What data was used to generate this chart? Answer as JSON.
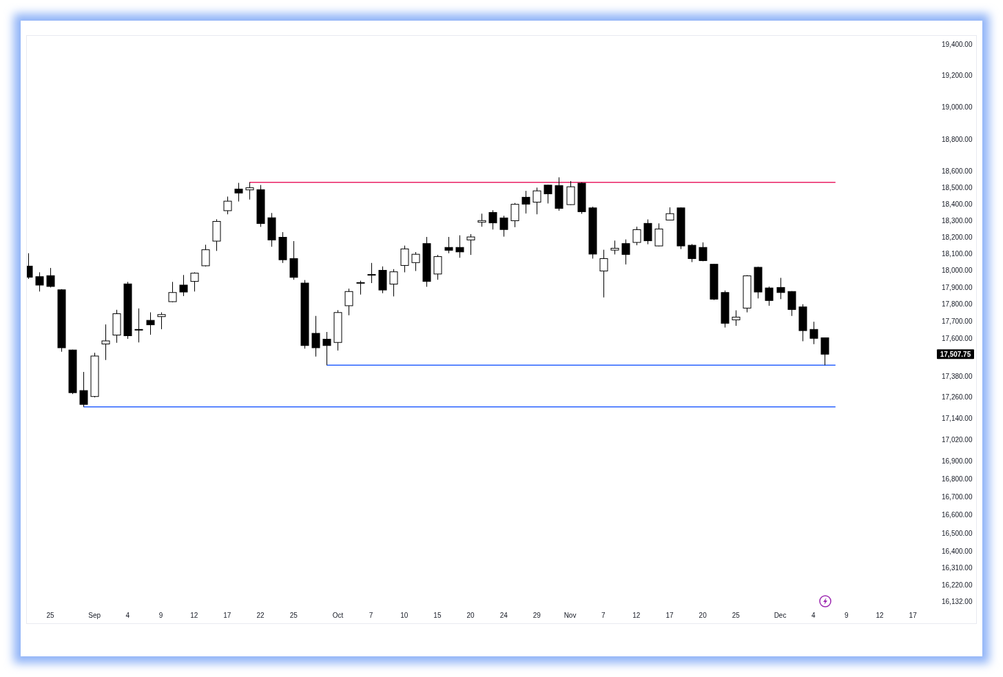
{
  "chart_data": {
    "type": "candlestick",
    "categories": [
      null,
      null,
      "25",
      null,
      null,
      null,
      "Sep",
      null,
      null,
      "4",
      null,
      null,
      "9",
      null,
      null,
      "12",
      null,
      null,
      "17",
      null,
      null,
      "22",
      null,
      null,
      "25",
      null,
      null,
      null,
      "Oct",
      null,
      null,
      "7",
      null,
      null,
      "10",
      null,
      null,
      "15",
      null,
      null,
      "20",
      null,
      null,
      "24",
      null,
      null,
      "29",
      null,
      null,
      "Nov",
      null,
      null,
      "7",
      null,
      null,
      "12",
      null,
      null,
      "17",
      null,
      null,
      "20",
      null,
      null,
      "25",
      null,
      null,
      null,
      "Dec",
      null,
      null,
      "4",
      null,
      null,
      "9",
      null,
      null,
      "12",
      null,
      null,
      "17",
      null
    ],
    "ohlc": [
      [
        18026,
        18103,
        17950,
        17960
      ],
      [
        17963,
        17989,
        17875,
        17913
      ],
      [
        17969,
        18015,
        17899,
        17905
      ],
      [
        17885,
        17889,
        17522,
        17545
      ],
      [
        17532,
        17534,
        17278,
        17286
      ],
      [
        17298,
        17405,
        17205,
        17219
      ],
      [
        17264,
        17516,
        17259,
        17497
      ],
      [
        17567,
        17681,
        17474,
        17585
      ],
      [
        17619,
        17767,
        17574,
        17744
      ],
      [
        17920,
        17932,
        17597,
        17615
      ],
      [
        17652,
        17775,
        17576,
        17650
      ],
      [
        17705,
        17752,
        17621,
        17679
      ],
      [
        17727,
        17752,
        17653,
        17739
      ],
      [
        17815,
        17932,
        17812,
        17869
      ],
      [
        17913,
        17973,
        17848,
        17872
      ],
      [
        17935,
        17989,
        17875,
        17984
      ],
      [
        18028,
        18154,
        18024,
        18124
      ],
      [
        18176,
        18308,
        18117,
        18295
      ],
      [
        18360,
        18446,
        18338,
        18418
      ],
      [
        18492,
        18530,
        18416,
        18468
      ],
      [
        18487,
        18533,
        18428,
        18500
      ],
      [
        18488,
        18517,
        18262,
        18282
      ],
      [
        18317,
        18346,
        18142,
        18183
      ],
      [
        18199,
        18230,
        18045,
        18064
      ],
      [
        18071,
        18176,
        17945,
        17959
      ],
      [
        17925,
        17943,
        17540,
        17558
      ],
      [
        17629,
        17731,
        17494,
        17545
      ],
      [
        17595,
        17637,
        17444,
        17558
      ],
      [
        17576,
        17765,
        17529,
        17751
      ],
      [
        17791,
        17892,
        17735,
        17875
      ],
      [
        17927,
        17939,
        17857,
        17928
      ],
      [
        17975,
        18045,
        17925,
        17976
      ],
      [
        18001,
        18024,
        17865,
        17884
      ],
      [
        17919,
        18008,
        17846,
        17992
      ],
      [
        18030,
        18149,
        17989,
        18129
      ],
      [
        18047,
        18110,
        17997,
        18097
      ],
      [
        18161,
        18201,
        17903,
        17935
      ],
      [
        17979,
        18093,
        17945,
        18083
      ],
      [
        18138,
        18201,
        18103,
        18121
      ],
      [
        18138,
        18211,
        18076,
        18111
      ],
      [
        18183,
        18218,
        18093,
        18201
      ],
      [
        18290,
        18342,
        18263,
        18300
      ],
      [
        18349,
        18363,
        18246,
        18286
      ],
      [
        18316,
        18329,
        18203,
        18246
      ],
      [
        18299,
        18407,
        18260,
        18399
      ],
      [
        18442,
        18481,
        18343,
        18400
      ],
      [
        18412,
        18501,
        18338,
        18481
      ],
      [
        18516,
        18518,
        18404,
        18463
      ],
      [
        18513,
        18564,
        18360,
        18374
      ],
      [
        18397,
        18541,
        18395,
        18506
      ],
      [
        18528,
        18533,
        18341,
        18354
      ],
      [
        18377,
        18384,
        18071,
        18098
      ],
      [
        17997,
        18124,
        17840,
        18071
      ],
      [
        18122,
        18179,
        18096,
        18133
      ],
      [
        18161,
        18186,
        18036,
        18096
      ],
      [
        18168,
        18263,
        18151,
        18245
      ],
      [
        18283,
        18307,
        18157,
        18178
      ],
      [
        18147,
        18283,
        18145,
        18249
      ],
      [
        18303,
        18380,
        18301,
        18342
      ],
      [
        18377,
        18379,
        18128,
        18147
      ],
      [
        18151,
        18158,
        18050,
        18071
      ],
      [
        18138,
        18168,
        18055,
        18059
      ],
      [
        18037,
        18039,
        17825,
        17830
      ],
      [
        17869,
        17881,
        17663,
        17688
      ],
      [
        17708,
        17764,
        17673,
        17724
      ],
      [
        17777,
        17972,
        17752,
        17968
      ],
      [
        18019,
        18022,
        17834,
        17872
      ],
      [
        17896,
        17904,
        17791,
        17822
      ],
      [
        17899,
        17956,
        17830,
        17869
      ],
      [
        17875,
        17877,
        17731,
        17769
      ],
      [
        17784,
        17800,
        17583,
        17645
      ],
      [
        17652,
        17697,
        17566,
        17600
      ],
      [
        17603,
        17605,
        17444,
        17507.75
      ],
      null,
      null,
      null,
      null,
      null,
      null,
      null,
      null,
      null
    ],
    "series": [
      {
        "type": "line",
        "color": "#e91e63",
        "values": [
          null,
          null,
          null,
          null,
          null,
          null,
          null,
          null,
          null,
          null,
          null,
          null,
          null,
          null,
          null,
          null,
          null,
          null,
          null,
          null,
          18533,
          18533,
          18533,
          18533,
          18533,
          18533,
          18533,
          18533,
          18533,
          18533,
          18533,
          18533,
          18533,
          18533,
          18533,
          18533,
          18533,
          18533,
          18533,
          18533,
          18533,
          18533,
          18533,
          18533,
          18533,
          18533,
          18533,
          18533,
          18533,
          18533,
          18533,
          18533,
          18533,
          18533,
          18533,
          18533,
          18533,
          18533,
          18533,
          18533,
          18533,
          18533,
          18533,
          18533,
          18533,
          18533,
          18533,
          18533,
          18533,
          18533,
          18533,
          18533,
          18533,
          18533,
          null,
          null,
          null,
          null,
          null,
          null,
          null,
          null
        ]
      },
      {
        "type": "line",
        "color": "#2962ff",
        "values": [
          null,
          null,
          null,
          null,
          null,
          null,
          null,
          null,
          null,
          null,
          null,
          null,
          null,
          null,
          null,
          null,
          null,
          null,
          null,
          null,
          null,
          null,
          null,
          null,
          null,
          null,
          null,
          17444,
          17444,
          17444,
          17444,
          17444,
          17444,
          17444,
          17444,
          17444,
          17444,
          17444,
          17444,
          17444,
          17444,
          17444,
          17444,
          17444,
          17444,
          17444,
          17444,
          17444,
          17444,
          17444,
          17444,
          17444,
          17444,
          17444,
          17444,
          17444,
          17444,
          17444,
          17444,
          17444,
          17444,
          17444,
          17444,
          17444,
          17444,
          17444,
          17444,
          17444,
          17444,
          17444,
          17444,
          17444,
          17444,
          17444,
          null,
          null,
          null,
          null,
          null,
          null,
          null,
          null
        ]
      },
      {
        "type": "line",
        "color": "#2962ff",
        "values": [
          null,
          null,
          null,
          null,
          null,
          17205,
          17205,
          17205,
          17205,
          17205,
          17205,
          17205,
          17205,
          17205,
          17205,
          17205,
          17205,
          17205,
          17205,
          17205,
          17205,
          17205,
          17205,
          17205,
          17205,
          17205,
          17205,
          17205,
          17205,
          17205,
          17205,
          17205,
          17205,
          17205,
          17205,
          17205,
          17205,
          17205,
          17205,
          17205,
          17205,
          17205,
          17205,
          17205,
          17205,
          17205,
          17205,
          17205,
          17205,
          17205,
          17205,
          17205,
          17205,
          17205,
          17205,
          17205,
          17205,
          17205,
          17205,
          17205,
          17205,
          17205,
          17205,
          17205,
          17205,
          17205,
          17205,
          17205,
          17205,
          17205,
          17205,
          17205,
          17205,
          17205,
          null,
          null,
          null,
          null,
          null,
          null,
          null,
          null
        ]
      }
    ],
    "log": true,
    "ylim": [
      16132,
      19455
    ],
    "yticks": [
      {
        "value": 16132,
        "label": "16,132.00"
      },
      {
        "value": 16220,
        "label": "16,220.00"
      },
      {
        "value": 16310,
        "label": "16,310.00"
      },
      {
        "value": 16400,
        "label": "16,400.00"
      },
      {
        "value": 16500,
        "label": "16,500.00"
      },
      {
        "value": 16600,
        "label": "16,600.00"
      },
      {
        "value": 16700,
        "label": "16,700.00"
      },
      {
        "value": 16800,
        "label": "16,800.00"
      },
      {
        "value": 16900,
        "label": "16,900.00"
      },
      {
        "value": 17020,
        "label": "17,020.00"
      },
      {
        "value": 17140,
        "label": "17,140.00"
      },
      {
        "value": 17260,
        "label": "17,260.00"
      },
      {
        "value": 17380,
        "label": "17,380.00"
      },
      {
        "value": 17600,
        "label": "17,600.00"
      },
      {
        "value": 17700,
        "label": "17,700.00"
      },
      {
        "value": 17800,
        "label": "17,800.00"
      },
      {
        "value": 17900,
        "label": "17,900.00"
      },
      {
        "value": 18000,
        "label": "18,000.00"
      },
      {
        "value": 18100,
        "label": "18,100.00"
      },
      {
        "value": 18200,
        "label": "18,200.00"
      },
      {
        "value": 18300,
        "label": "18,300.00"
      },
      {
        "value": 18400,
        "label": "18,400.00"
      },
      {
        "value": 18500,
        "label": "18,500.00"
      },
      {
        "value": 18600,
        "label": "18,600.00"
      },
      {
        "value": 18800,
        "label": "18,800.00"
      },
      {
        "value": 19000,
        "label": "19,000.00"
      },
      {
        "value": 19200,
        "label": "19,200.00"
      },
      {
        "value": 19400,
        "label": "19,400.00"
      }
    ],
    "annotations": [
      "17,507.75"
    ]
  }
}
